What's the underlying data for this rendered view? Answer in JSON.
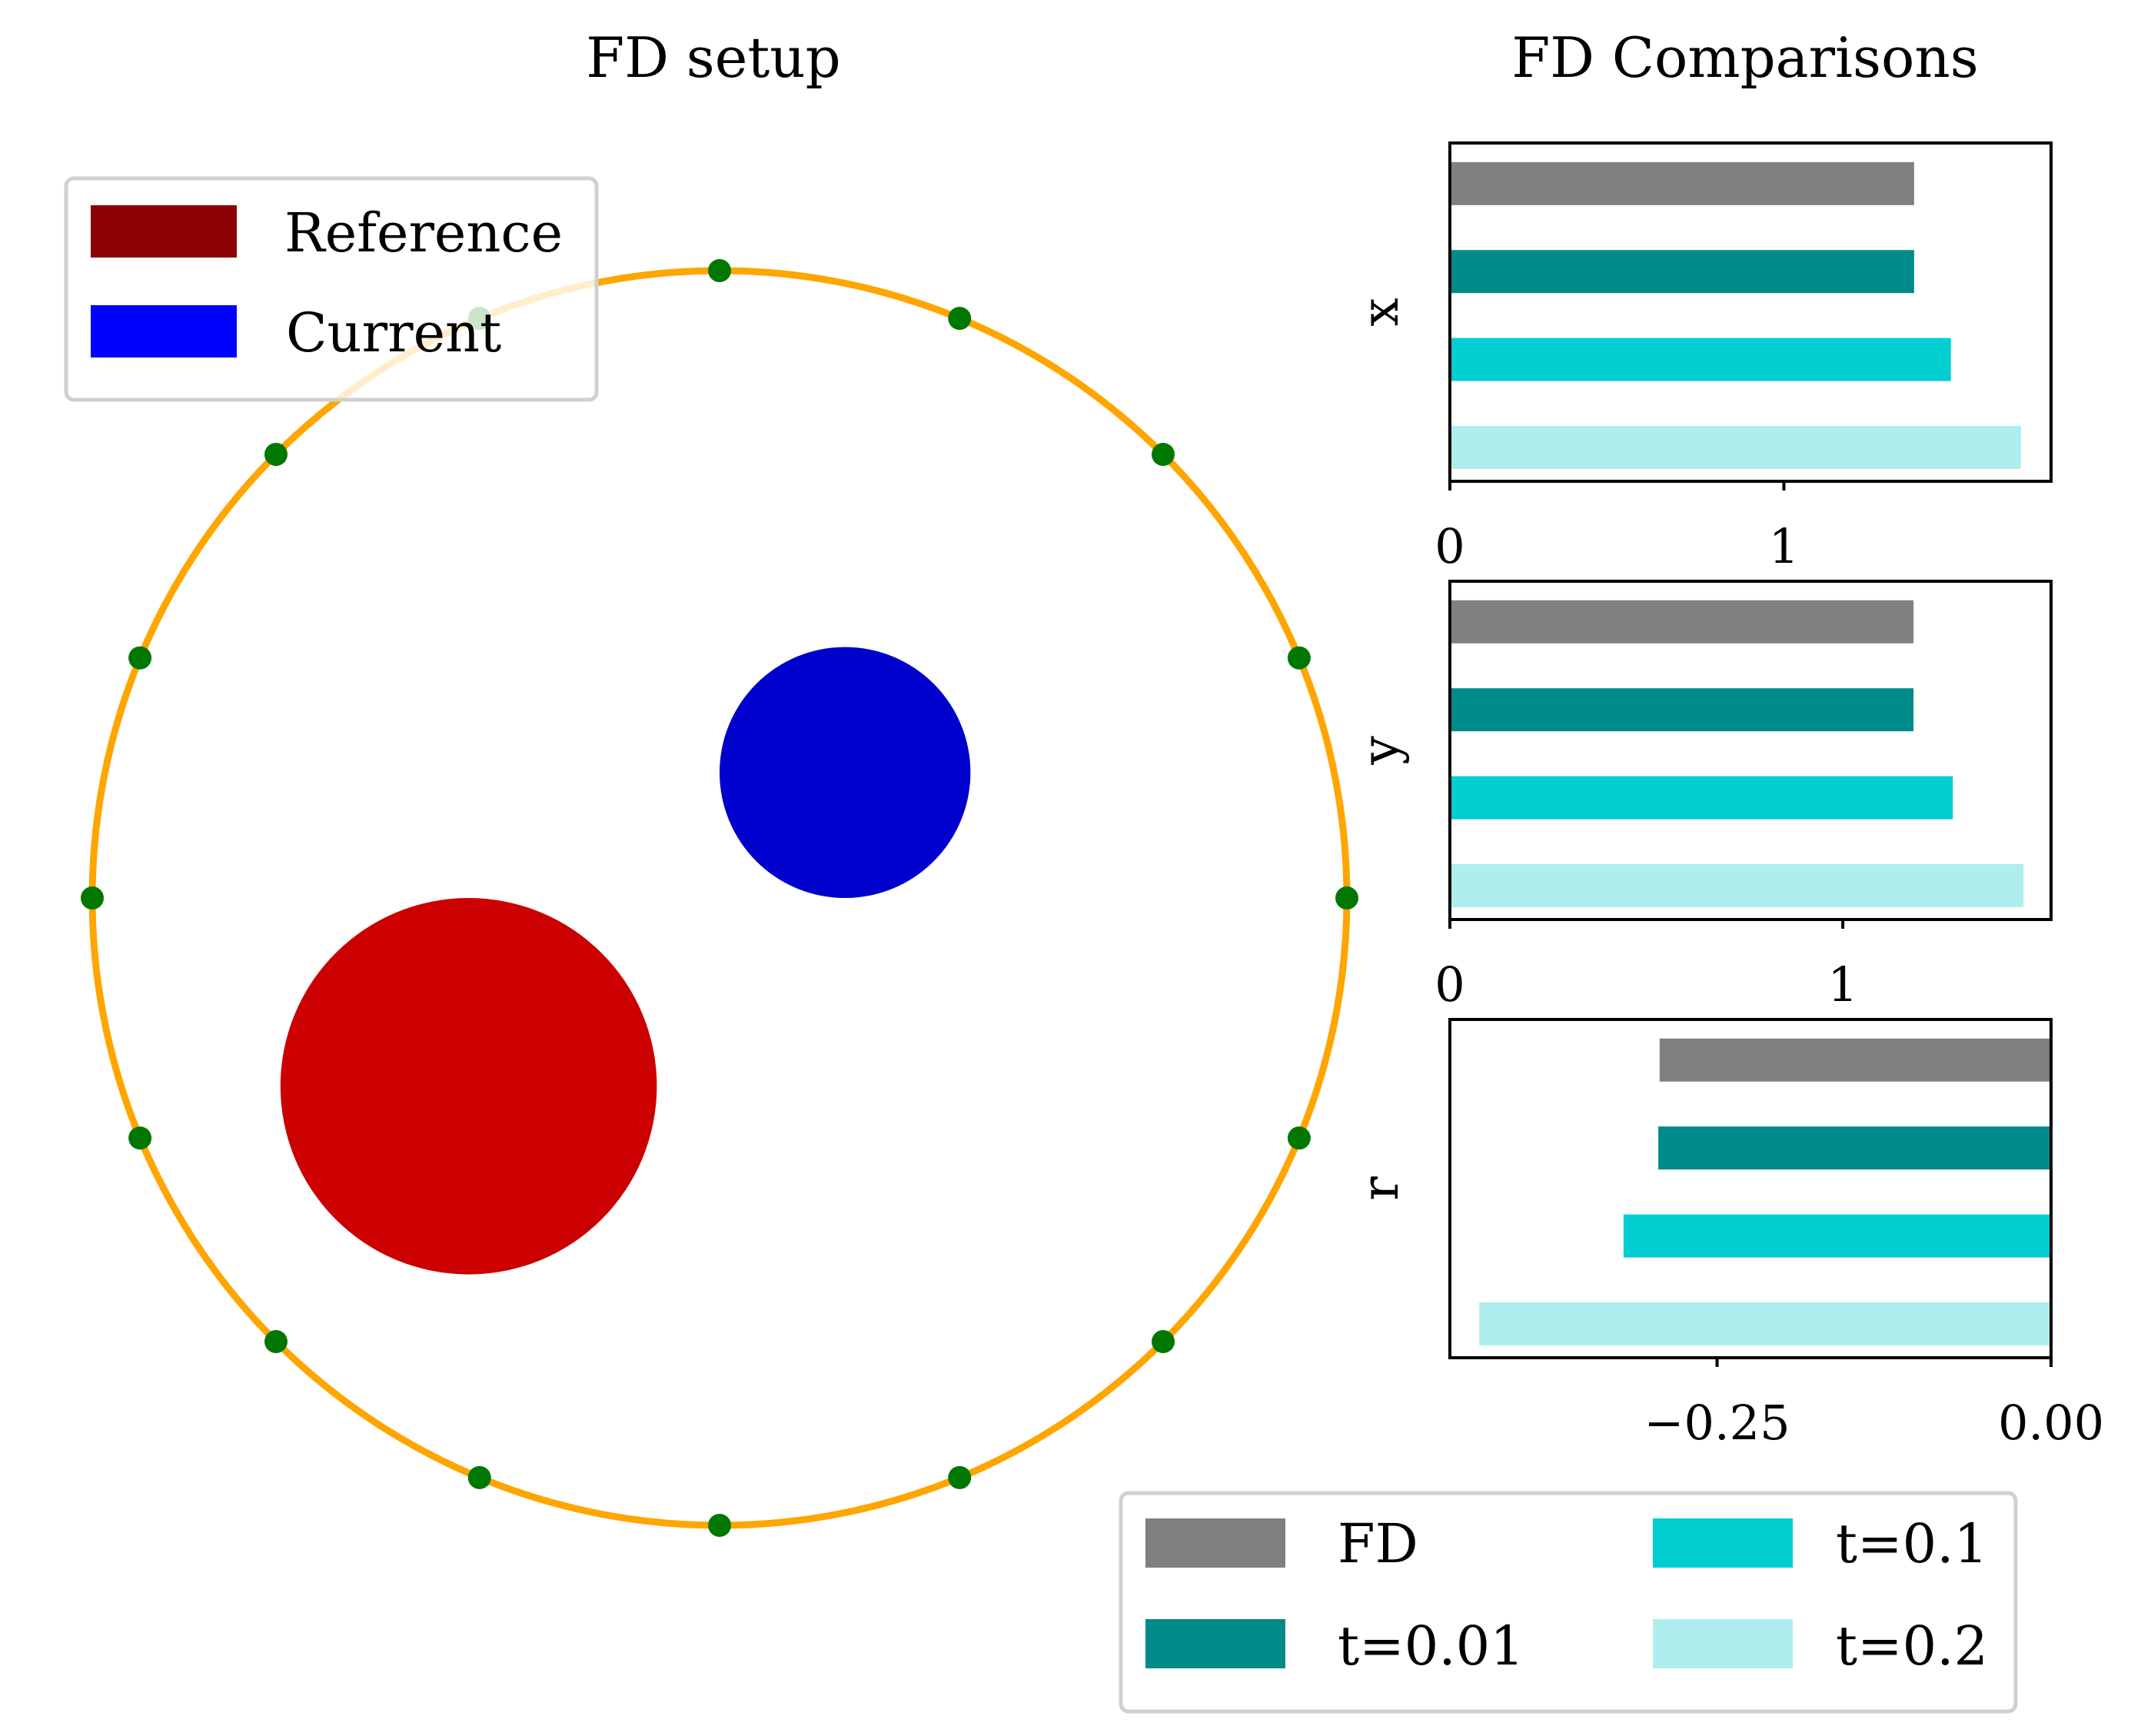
{
  "colors": {
    "reference": "#cc0000",
    "reference_legend": "#8b0000",
    "current": "#0000cc",
    "current_legend": "#0000ff",
    "ring": "#ffa500",
    "points": "#007700",
    "fd": "#808080",
    "t001": "#008b8b",
    "t01": "#00ced1",
    "t02": "#afeeee"
  },
  "chart_data": [
    {
      "type": "scatter",
      "title": "FD setup",
      "legend": {
        "position": "top-left",
        "items": [
          {
            "label": "Reference",
            "color": "#8b0000"
          },
          {
            "label": "Current",
            "color": "#0000ff"
          }
        ]
      },
      "ring": {
        "center": [
          0,
          0
        ],
        "radius": 1.0
      },
      "ring_points": {
        "count": 16
      },
      "circles": [
        {
          "name": "Reference",
          "center": [
            -0.4,
            -0.3
          ],
          "radius": 0.3
        },
        {
          "name": "Current",
          "center": [
            0.2,
            0.2
          ],
          "radius": 0.2
        }
      ]
    },
    {
      "type": "bar",
      "title": "FD Comparisons",
      "orientation": "horizontal",
      "legend": {
        "position": "bottom-right",
        "items": [
          {
            "label": "FD",
            "color": "#808080"
          },
          {
            "label": "t=0.01",
            "color": "#008b8b"
          },
          {
            "label": "t=0.1",
            "color": "#00ced1"
          },
          {
            "label": "t=0.2",
            "color": "#afeeee"
          }
        ]
      },
      "panels": [
        {
          "ylabel": "x",
          "xlim": [
            0,
            1.8
          ],
          "xticks": [
            {
              "value": 0,
              "label": "0"
            },
            {
              "value": 1,
              "label": "1"
            }
          ],
          "series": [
            {
              "name": "FD",
              "value": 1.39
            },
            {
              "name": "t=0.01",
              "value": 1.39
            },
            {
              "name": "t=0.1",
              "value": 1.5
            },
            {
              "name": "t=0.2",
              "value": 1.71
            }
          ]
        },
        {
          "ylabel": "y",
          "xlim": [
            0,
            1.53
          ],
          "xticks": [
            {
              "value": 0,
              "label": "0"
            },
            {
              "value": 1,
              "label": "1"
            }
          ],
          "series": [
            {
              "name": "FD",
              "value": 1.18
            },
            {
              "name": "t=0.01",
              "value": 1.18
            },
            {
              "name": "t=0.1",
              "value": 1.28
            },
            {
              "name": "t=0.2",
              "value": 1.46
            }
          ]
        },
        {
          "ylabel": "r",
          "xlim": [
            -0.45,
            0.0
          ],
          "xticks": [
            {
              "value": -0.25,
              "label": "−0.25"
            },
            {
              "value": 0.0,
              "label": "0.00"
            }
          ],
          "series": [
            {
              "name": "FD",
              "value": -0.293
            },
            {
              "name": "t=0.01",
              "value": -0.294
            },
            {
              "name": "t=0.1",
              "value": -0.32
            },
            {
              "name": "t=0.2",
              "value": -0.428
            }
          ]
        }
      ]
    }
  ]
}
